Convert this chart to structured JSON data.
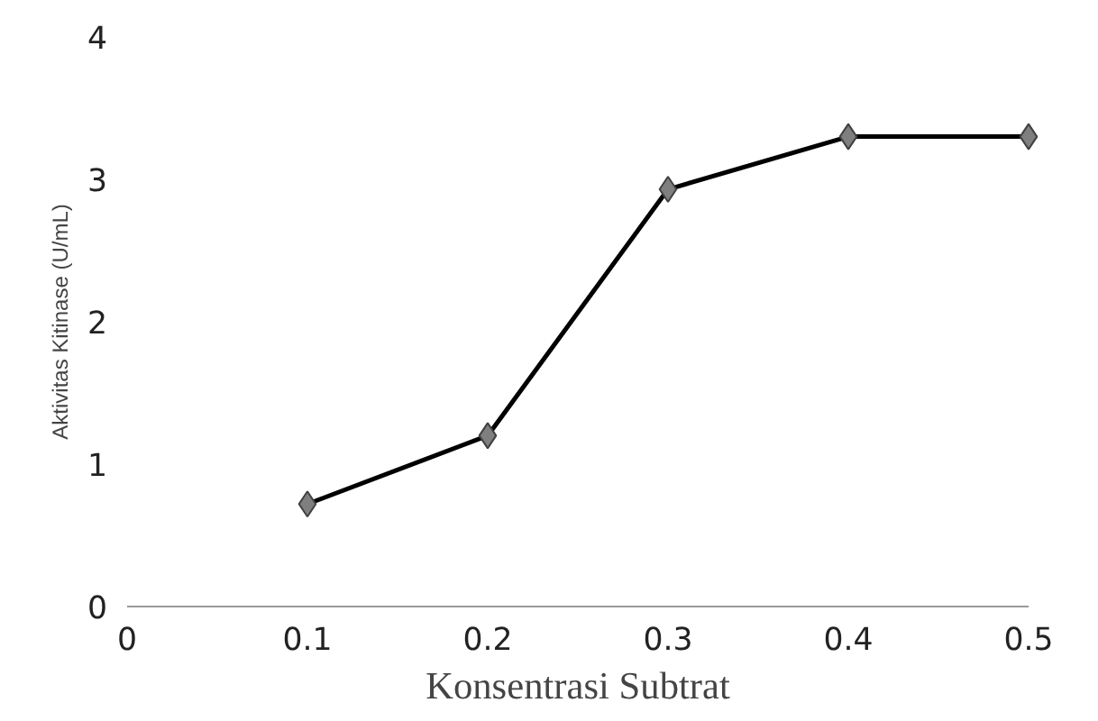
{
  "chart_data": {
    "type": "line",
    "xlabel": "Konsentrasi Subtrat",
    "ylabel": "Aktivitas Kitinase (U/mL)",
    "x": [
      0.1,
      0.2,
      0.3,
      0.4,
      0.5
    ],
    "series": [
      {
        "color": "#000000",
        "values": [
          0.72,
          1.2,
          2.93,
          3.3,
          3.3
        ]
      }
    ],
    "xlim": [
      0,
      0.5
    ],
    "xticks": [
      0,
      0.1,
      0.2,
      0.3,
      0.4,
      0.5
    ],
    "ylim": [
      0,
      4
    ],
    "yticks": [
      0,
      1,
      2,
      3,
      4
    ],
    "grid": false,
    "marker": "diamond",
    "line_style": "solid"
  }
}
